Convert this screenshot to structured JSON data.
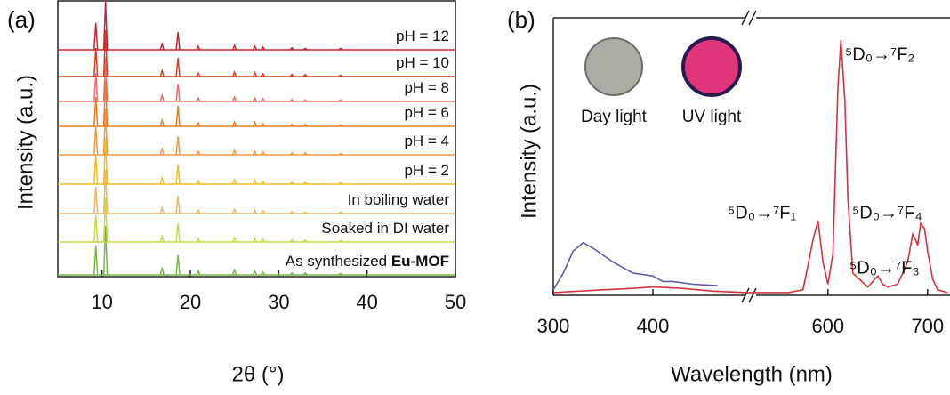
{
  "chart_data": [
    {
      "type": "xrd",
      "panel": "(a)",
      "ylabel": "Intensity (a.u.)",
      "xlabel": "2θ (°)",
      "xlim": [
        5,
        50
      ],
      "xticks": [
        10,
        20,
        30,
        40,
        50
      ],
      "x": [
        9.3,
        10.4,
        16.8,
        18.6,
        20.9,
        25,
        27.3,
        28.2,
        31.5,
        33,
        37
      ],
      "series": [
        {
          "name": "As synthesized",
          "emphasis": "Eu-MOF",
          "color": "#7ab648",
          "values": [
            60,
            100,
            15,
            40,
            8,
            10,
            8,
            6,
            4,
            4,
            3
          ]
        },
        {
          "name": "Soaked in DI water",
          "color": "#c8d84a",
          "values": [
            55,
            90,
            12,
            38,
            7,
            9,
            8,
            6,
            4,
            4,
            3
          ]
        },
        {
          "name": "In boiling water",
          "color": "#e8b86a",
          "values": [
            55,
            90,
            12,
            36,
            7,
            9,
            7,
            6,
            4,
            3,
            3
          ]
        },
        {
          "name": "pH = 2",
          "color": "#f0c020",
          "values": [
            60,
            95,
            13,
            40,
            7,
            9,
            8,
            6,
            4,
            4,
            3
          ]
        },
        {
          "name": "pH = 4",
          "color": "#eb9a4a",
          "values": [
            58,
            95,
            12,
            38,
            7,
            9,
            7,
            6,
            4,
            4,
            3
          ]
        },
        {
          "name": "pH = 6",
          "color": "#e67e22",
          "values": [
            60,
            95,
            12,
            42,
            7,
            9,
            8,
            6,
            4,
            4,
            3
          ]
        },
        {
          "name": "pH = 8",
          "color": "#e0706a",
          "values": [
            58,
            90,
            12,
            36,
            7,
            9,
            7,
            6,
            4,
            3,
            3
          ]
        },
        {
          "name": "pH = 10",
          "color": "#d43d2a",
          "values": [
            58,
            95,
            12,
            38,
            7,
            9,
            8,
            6,
            4,
            4,
            3
          ]
        },
        {
          "name": "pH = 12",
          "color": "#c4262e",
          "values": [
            55,
            100,
            12,
            36,
            7,
            9,
            7,
            6,
            4,
            3,
            3
          ]
        }
      ]
    },
    {
      "type": "line",
      "panel": "(b)",
      "ylabel": "Intensity (a.u.)",
      "xlabel": "Wavelength (nm)",
      "xlim": [
        300,
        720
      ],
      "xbreak": [
        495,
        530
      ],
      "xticks": [
        300,
        400,
        600,
        700
      ],
      "ylim": [
        0,
        100
      ],
      "insets": [
        "Day light",
        "UV light"
      ],
      "annotations": [
        "⁵D₀→⁷F₂",
        "⁵D₀→⁷F₁",
        "⁵D₀→⁷F₄",
        "⁵D₀→⁷F₃"
      ],
      "series": [
        {
          "color": "#5b5ea6",
          "x": [
            300,
            310,
            320,
            330,
            340,
            360,
            380,
            400,
            410,
            420,
            440,
            465
          ],
          "values": [
            2,
            8,
            16,
            19,
            17,
            12,
            8,
            7,
            5,
            5,
            4,
            3.5
          ]
        },
        {
          "color": "#d0343c",
          "x": [
            300,
            350,
            380,
            400,
            430,
            460,
            495,
            530,
            560,
            575,
            585,
            590,
            595,
            600,
            605,
            610,
            613,
            617,
            620,
            625,
            640,
            645,
            650,
            655,
            660,
            670,
            680,
            685,
            688,
            690,
            693,
            697,
            700,
            705,
            710,
            720
          ],
          "values": [
            1,
            2,
            2.5,
            3,
            2.5,
            1.5,
            1,
            1,
            1,
            2,
            20,
            27,
            12,
            4,
            15,
            75,
            92,
            70,
            35,
            8,
            3,
            5,
            7,
            4,
            3,
            4,
            12,
            22,
            20,
            18,
            26,
            24,
            16,
            6,
            2,
            1
          ]
        }
      ]
    }
  ]
}
